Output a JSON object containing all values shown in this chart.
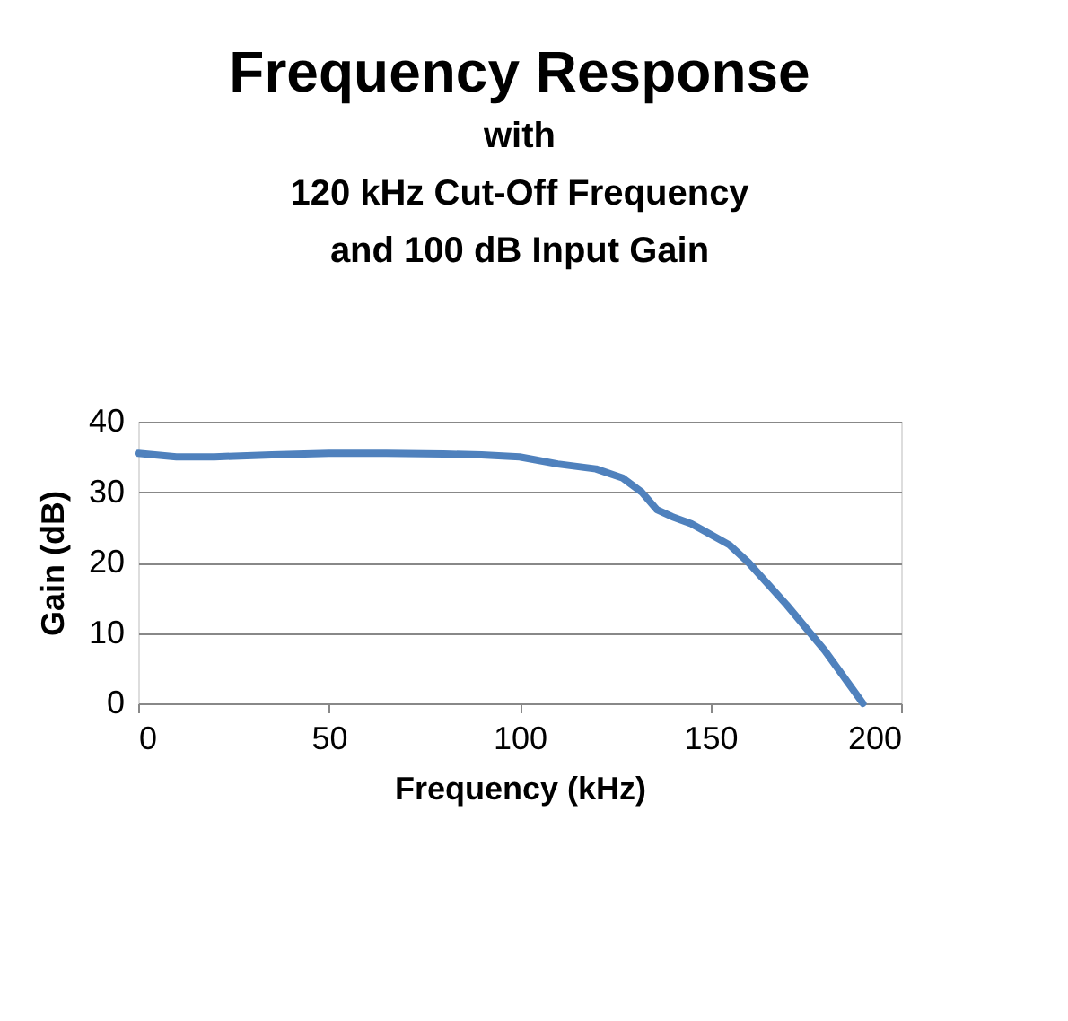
{
  "chart_data": {
    "type": "line",
    "title": "Frequency Response",
    "subtitle": "with\n120 kHz Cut-Off Frequency\nand 100 dB Input Gain",
    "xlabel": "Frequency (kHz)",
    "ylabel": "Gain (dB)",
    "x": [
      0,
      10,
      20,
      35,
      50,
      65,
      80,
      90,
      100,
      110,
      120,
      127,
      132,
      136,
      140,
      145,
      150,
      155,
      160,
      170,
      180,
      190
    ],
    "series": [
      {
        "color": "#4f81bd",
        "values": [
          35.5,
          35,
          35,
          35.3,
          35.5,
          35.5,
          35.4,
          35.3,
          35,
          34,
          33.3,
          32,
          30,
          27.5,
          26.5,
          25.5,
          24,
          22.5,
          20,
          14,
          7.5,
          0
        ]
      }
    ],
    "xlim": [
      0,
      200
    ],
    "xticks": [
      0,
      50,
      100,
      150,
      200
    ],
    "ylim": [
      0,
      40
    ],
    "yticks": [
      0,
      10,
      20,
      30,
      40
    ],
    "grid": "y",
    "legend": false,
    "marker": "none",
    "line_style": "solid"
  }
}
